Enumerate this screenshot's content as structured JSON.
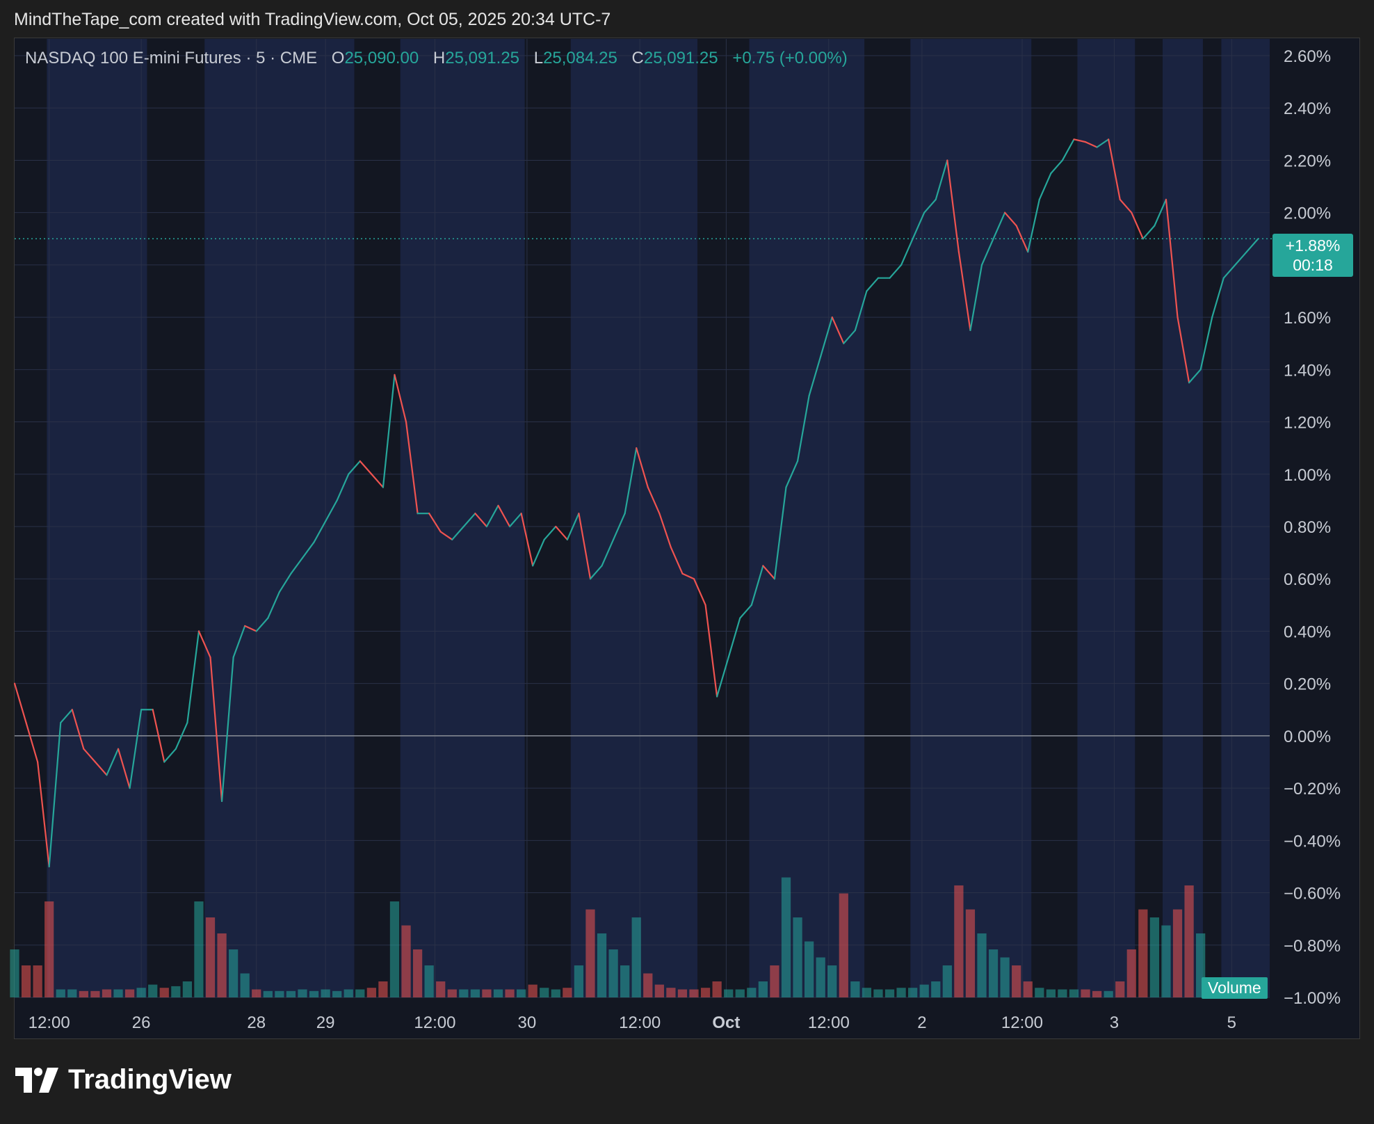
{
  "header": {
    "attribution": "MindTheTape_com created with TradingView.com, Oct 05, 2025 20:34 UTC-7"
  },
  "legend": {
    "symbol": "NASDAQ 100 E-mini Futures · 5 · CME",
    "open_label": "O",
    "open": "25,090.00",
    "high_label": "H",
    "high": "25,091.25",
    "low_label": "L",
    "low": "25,084.25",
    "close_label": "C",
    "close": "25,091.25",
    "change": "+0.75 (+0.00%)"
  },
  "last_price": {
    "percent": "+1.88%",
    "countdown": "00:18"
  },
  "volume_label": "Volume",
  "brand": {
    "name": "TradingView"
  },
  "colors": {
    "up": "#26a69a",
    "down": "#ef5350",
    "session_bg": "#1a2340",
    "offhours_bg": "#131722"
  },
  "chart_data": {
    "type": "line",
    "ylabel": "",
    "y_unit": "percent change",
    "ylim": [
      -1.0,
      2.6
    ],
    "y_ticks": [
      "2.60%",
      "2.40%",
      "2.20%",
      "2.00%",
      "1.80%",
      "1.60%",
      "1.40%",
      "1.20%",
      "1.00%",
      "0.80%",
      "0.60%",
      "0.40%",
      "0.20%",
      "0.00%",
      "−0.20%",
      "−0.40%",
      "−0.60%",
      "−0.80%",
      "−1.00%"
    ],
    "x_ticks": [
      "12:00",
      "26",
      "28",
      "29",
      "12:00",
      "30",
      "12:00",
      "Oct",
      "12:00",
      "2",
      "12:00",
      "3",
      "5"
    ],
    "x_tick_index": [
      3.0,
      11.0,
      21.0,
      27.0,
      36.5,
      44.5,
      54.3,
      61.8,
      70.7,
      78.8,
      87.5,
      95.5,
      105.7
    ],
    "n_steps": 109,
    "grid": true,
    "series": [
      {
        "values": [
          0.2,
          0.05,
          -0.1,
          -0.5,
          0.05,
          0.1,
          -0.05,
          -0.1,
          -0.15,
          -0.05,
          -0.2,
          0.1,
          0.1,
          -0.1,
          -0.05,
          0.05,
          0.4,
          0.3,
          -0.25,
          0.3,
          0.42,
          0.4,
          0.45,
          0.55,
          0.62,
          0.68,
          0.74,
          0.82,
          0.9,
          1.0,
          1.05,
          1.0,
          0.95,
          1.38,
          1.2,
          0.85,
          0.85,
          0.78,
          0.75,
          0.8,
          0.85,
          0.8,
          0.88,
          0.8,
          0.85,
          0.65,
          0.75,
          0.8,
          0.75,
          0.85,
          0.6,
          0.65,
          0.75,
          0.85,
          1.1,
          0.95,
          0.85,
          0.72,
          0.62,
          0.6,
          0.5,
          0.15,
          0.3,
          0.45,
          0.5,
          0.65,
          0.6,
          0.95,
          1.05,
          1.3,
          1.45,
          1.6,
          1.5,
          1.55,
          1.7,
          1.75,
          1.75,
          1.8,
          1.9,
          2.0,
          2.05,
          2.2,
          1.85,
          1.55,
          1.8,
          1.9,
          2.0,
          1.95,
          1.85,
          2.05,
          2.15,
          2.2,
          2.28,
          2.27,
          2.25,
          2.28,
          2.05,
          2.0,
          1.9,
          1.95,
          2.05,
          1.6,
          1.35,
          1.4,
          1.6,
          1.75,
          1.8,
          1.85,
          1.9
        ]
      }
    ],
    "volume": [
      0.3,
      0.2,
      0.2,
      0.6,
      0.05,
      0.05,
      0.04,
      0.04,
      0.05,
      0.05,
      0.05,
      0.06,
      0.08,
      0.06,
      0.07,
      0.1,
      0.6,
      0.5,
      0.4,
      0.3,
      0.15,
      0.05,
      0.04,
      0.04,
      0.04,
      0.05,
      0.04,
      0.05,
      0.04,
      0.05,
      0.05,
      0.06,
      0.1,
      0.6,
      0.45,
      0.3,
      0.2,
      0.1,
      0.05,
      0.05,
      0.05,
      0.05,
      0.05,
      0.05,
      0.05,
      0.08,
      0.06,
      0.05,
      0.06,
      0.2,
      0.55,
      0.4,
      0.3,
      0.2,
      0.5,
      0.15,
      0.08,
      0.06,
      0.05,
      0.05,
      0.06,
      0.1,
      0.05,
      0.05,
      0.06,
      0.1,
      0.2,
      0.75,
      0.5,
      0.35,
      0.25,
      0.2,
      0.65,
      0.1,
      0.06,
      0.05,
      0.05,
      0.06,
      0.06,
      0.08,
      0.1,
      0.2,
      0.7,
      0.55,
      0.4,
      0.3,
      0.25,
      0.2,
      0.1,
      0.06,
      0.05,
      0.05,
      0.05,
      0.05,
      0.04,
      0.04,
      0.1,
      0.3,
      0.55,
      0.5,
      0.45,
      0.55,
      0.7,
      0.4,
      0.1,
      0.05,
      0.05,
      0.04,
      0.04
    ],
    "sessions_offhours": [
      [
        0,
        2.8
      ],
      [
        11.5,
        16.5
      ],
      [
        29.5,
        33.5
      ],
      [
        44.3,
        48.3
      ],
      [
        59.3,
        63.8
      ],
      [
        73.8,
        77.8
      ],
      [
        88.3,
        92.3
      ],
      [
        97.3,
        99.7
      ],
      [
        103.2,
        104.8
      ]
    ]
  }
}
